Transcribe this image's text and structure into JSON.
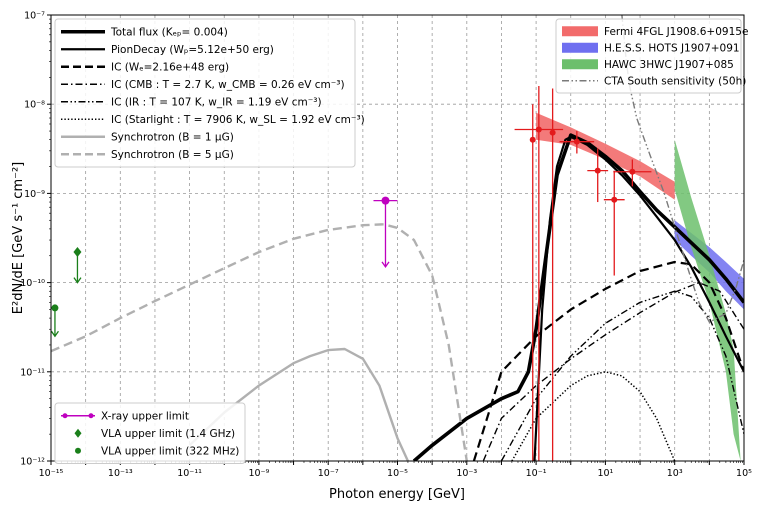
{
  "chart_data": {
    "type": "line",
    "xlabel": "Photon energy [GeV]",
    "ylabel": "E²dN/dE [GeV s⁻¹ cm⁻²]",
    "x_scale": "log",
    "y_scale": "log",
    "xlim": [
      1e-15,
      100000.0
    ],
    "ylim": [
      1e-12,
      1e-07
    ],
    "grid": true,
    "x_ticks": [
      {
        "exp": -15,
        "label": "10⁻¹⁵"
      },
      {
        "exp": -13,
        "label": "10⁻¹³"
      },
      {
        "exp": -11,
        "label": "10⁻¹¹"
      },
      {
        "exp": -9,
        "label": "10⁻⁹"
      },
      {
        "exp": -7,
        "label": "10⁻⁷"
      },
      {
        "exp": -5,
        "label": "10⁻⁵"
      },
      {
        "exp": -3,
        "label": "10⁻³"
      },
      {
        "exp": -1,
        "label": "10⁻¹"
      },
      {
        "exp": 1,
        "label": "10¹"
      },
      {
        "exp": 3,
        "label": "10³"
      },
      {
        "exp": 5,
        "label": "10⁵"
      }
    ],
    "y_ticks": [
      {
        "exp": -12,
        "label": "10⁻¹²"
      },
      {
        "exp": -11,
        "label": "10⁻¹¹"
      },
      {
        "exp": -10,
        "label": "10⁻¹⁰"
      },
      {
        "exp": -9,
        "label": "10⁻⁹"
      },
      {
        "exp": -8,
        "label": "10⁻⁸"
      },
      {
        "exp": -7,
        "label": "10⁻⁷"
      }
    ],
    "legend_left_top": [
      {
        "text": "Total flux (Kₑₚ= 0.004)",
        "style": "solid-thick",
        "color": "#000000"
      },
      {
        "text": "PionDecay (Wₚ=5.12e+50 erg)",
        "style": "solid",
        "color": "#000000"
      },
      {
        "text": "IC (Wₑ=2.16e+48 erg)",
        "style": "dashed",
        "color": "#000000"
      },
      {
        "text": "IC (CMB : T = 2.7 K, w_CMB = 0.26 eV cm⁻³)",
        "style": "dashdot",
        "color": "#000000"
      },
      {
        "text": "IC (IR : T = 107 K, w_IR = 1.19 eV cm⁻³)",
        "style": "dashdotdot",
        "color": "#000000"
      },
      {
        "text": "IC (Starlight : T = 7906 K, w_SL = 1.92 eV cm⁻³)",
        "style": "dotted",
        "color": "#000000"
      },
      {
        "text": "Synchrotron (B = 1 μG)",
        "style": "solid",
        "color": "#b0b0b0"
      },
      {
        "text": "Synchrotron (B = 5 μG)",
        "style": "dashed",
        "color": "#b0b0b0"
      }
    ],
    "legend_right_top": [
      {
        "text": "Fermi 4FGL J1908.6+0915e",
        "style": "patch",
        "color": "#f26b6b"
      },
      {
        "text": "H.E.S.S. HOTS J1907+091",
        "style": "patch",
        "color": "#6f6ff0"
      },
      {
        "text": "HAWC 3HWC J1907+085",
        "style": "patch",
        "color": "#6cbf6c"
      },
      {
        "text": "CTA South sensitivity (50h)",
        "style": "dashdotdot",
        "color": "#7a7a7a"
      }
    ],
    "legend_left_bottom": [
      {
        "text": "X-ray upper limit",
        "style": "marker-line",
        "color": "#bf00bf"
      },
      {
        "text": "VLA upper limit (1.4 GHz)",
        "style": "diamond",
        "color": "#1a7f1a"
      },
      {
        "text": "VLA upper limit (322 MHz)",
        "style": "circle",
        "color": "#1a7f1a"
      }
    ],
    "series": [
      {
        "name": "Total flux (Kₑₚ= 0.004)",
        "color": "#000000",
        "dash": "",
        "width": 3.6,
        "x": [
          3e-05,
          0.0001,
          0.001,
          0.01,
          0.03,
          0.06,
          0.1,
          0.2,
          0.4,
          1,
          3,
          10,
          30,
          100,
          300,
          1000,
          3000,
          10000,
          30000,
          100000
        ],
        "y": [
          1e-12,
          1.5e-12,
          3e-12,
          5e-12,
          6e-12,
          1e-11,
          3e-11,
          2.2e-10,
          1.6e-09,
          4.5e-09,
          3.7e-09,
          2.6e-09,
          1.8e-09,
          1.05e-09,
          6.5e-10,
          4.2e-10,
          2.8e-10,
          1.8e-10,
          1.1e-10,
          6e-11
        ]
      },
      {
        "name": "PionDecay (Wₚ=5.12e+50 erg)",
        "color": "#000000",
        "dash": "",
        "width": 2.2,
        "x": [
          0.09,
          0.15,
          0.25,
          0.4,
          0.7,
          1,
          3,
          10,
          30,
          100,
          300,
          1000,
          3000,
          10000,
          30000,
          100000
        ],
        "y": [
          1e-12,
          5e-11,
          5e-10,
          2e-09,
          4e-09,
          4.3e-09,
          3.5e-09,
          2.4e-09,
          1.6e-09,
          9.5e-10,
          5.5e-10,
          3e-10,
          1.5e-10,
          6e-11,
          2.5e-11,
          1e-11
        ]
      },
      {
        "name": "IC (Wₑ=2.16e+48 erg)",
        "color": "#000000",
        "dash": "9 5",
        "width": 2.2,
        "x": [
          0.0016,
          0.01,
          0.1,
          1,
          10,
          100,
          1000,
          3000,
          10000,
          30000,
          100000
        ],
        "y": [
          1e-12,
          1e-11,
          2.5e-11,
          5e-11,
          8.5e-11,
          1.35e-10,
          1.7e-10,
          1.6e-10,
          1e-10,
          4e-11,
          1e-11
        ]
      },
      {
        "name": "IC (CMB : T = 2.7 K, w_CMB = 0.26 eV cm⁻³)",
        "color": "#000000",
        "dash": "7 3 1.5 3",
        "width": 1.4,
        "x": [
          0.003,
          0.01,
          0.1,
          1,
          10,
          100,
          1000,
          5000,
          20000,
          100000
        ],
        "y": [
          1e-12,
          3e-12,
          7e-12,
          1.4e-11,
          2.6e-11,
          4.6e-11,
          7.8e-11,
          1e-10,
          8e-11,
          3e-11
        ]
      },
      {
        "name": "IC (IR : T = 107 K, w_IR = 1.19 eV cm⁻³)",
        "color": "#000000",
        "dash": "7 2.5 1.5 2.5 1.5 2.5",
        "width": 1.4,
        "x": [
          0.01,
          0.1,
          1,
          10,
          100,
          1000,
          3000,
          10000,
          30000,
          100000
        ],
        "y": [
          1e-12,
          5e-12,
          1.5e-11,
          3.5e-11,
          6e-11,
          8e-11,
          7e-11,
          4e-11,
          1.5e-11,
          2e-12
        ]
      },
      {
        "name": "IC (Starlight : T = 7906 K, w_SL = 1.92 eV cm⁻³)",
        "color": "#000000",
        "dash": "1.4 2",
        "width": 1.5,
        "x": [
          0.02,
          0.1,
          1,
          3,
          10,
          30,
          100,
          300,
          1000
        ],
        "y": [
          1e-12,
          3e-12,
          7e-12,
          9e-12,
          1e-11,
          9e-12,
          6e-12,
          3e-12,
          1e-12
        ]
      },
      {
        "name": "Synchrotron (B = 1 μG)",
        "color": "#b0b0b0",
        "dash": "",
        "width": 2.4,
        "x": [
          1e-11,
          1e-10,
          1e-09,
          1e-08,
          3e-08,
          1e-07,
          3e-07,
          1e-06,
          3e-06,
          1e-05,
          2e-05
        ],
        "y": [
          1.5e-12,
          3.5e-12,
          7e-12,
          1.25e-11,
          1.5e-11,
          1.75e-11,
          1.8e-11,
          1.4e-11,
          7e-12,
          1.8e-12,
          1e-12
        ]
      },
      {
        "name": "Synchrotron (B = 5 μG)",
        "color": "#b0b0b0",
        "dash": "9 5",
        "width": 2.4,
        "x": [
          1e-15,
          1e-14,
          1e-13,
          1e-12,
          1e-11,
          1e-10,
          1e-09,
          1e-08,
          1e-07,
          1e-06,
          4e-06,
          1e-05,
          3e-05,
          0.0001,
          0.0003,
          0.001
        ],
        "y": [
          1.7e-11,
          2.5e-11,
          4e-11,
          6.2e-11,
          9.5e-11,
          1.45e-10,
          2.2e-10,
          3.1e-10,
          3.9e-10,
          4.4e-10,
          4.5e-10,
          4.1e-10,
          3e-10,
          1.2e-10,
          2e-11,
          1e-12
        ]
      },
      {
        "name": "CTA South sensitivity (50h)",
        "color": "#7a7a7a",
        "dash": "7 2.5 1.5 2.5 1.5 2.5",
        "width": 1.4,
        "x": [
          30,
          40,
          50,
          80,
          100,
          200,
          500,
          1000,
          3000,
          5000,
          10000,
          30000,
          60000,
          100000
        ],
        "y": [
          1e-07,
          3e-08,
          1.6e-08,
          7e-09,
          5.5e-09,
          2.6e-09,
          1e-09,
          4.2e-10,
          1.1e-10,
          6e-11,
          3.6e-11,
          4.5e-11,
          9e-11,
          1.8e-10
        ]
      }
    ],
    "bands": [
      {
        "name": "Fermi 4FGL J1908.6+0915e",
        "color": "#f26b6b",
        "opacity": 0.9,
        "x": [
          0.1,
          1,
          10,
          100,
          1000
        ],
        "upper": [
          8e-09,
          5.5e-09,
          3.6e-09,
          2.3e-09,
          1.35e-09
        ],
        "lower": [
          4e-09,
          3.5e-09,
          2.4e-09,
          1.55e-09,
          8.5e-10
        ]
      },
      {
        "name": "H.E.S.S. HOTS J1907+091",
        "color": "#6f6ff0",
        "opacity": 0.85,
        "x": [
          1000,
          3000,
          10000,
          30000,
          100000
        ],
        "upper": [
          5e-10,
          3.6e-10,
          2.5e-10,
          1.7e-10,
          1.1e-10
        ],
        "lower": [
          3e-10,
          2e-10,
          1.3e-10,
          8e-11,
          5e-11
        ]
      },
      {
        "name": "HAWC 3HWC J1907+085",
        "color": "#6cbf6c",
        "opacity": 0.85,
        "x": [
          1000,
          3000,
          10000,
          30000,
          50000,
          80000
        ],
        "upper": [
          4e-09,
          9e-10,
          2e-10,
          4.5e-11,
          1.8e-11,
          1e-12
        ],
        "lower": [
          1.1e-09,
          2.5e-10,
          6e-11,
          1e-11,
          2e-12,
          1e-12
        ]
      }
    ],
    "fermi_points": {
      "color": "#e31a1c",
      "points": [
        {
          "x": 0.08,
          "y": 4e-09,
          "yerr_low": 1e-12,
          "yerr_high": 1e-08,
          "xerr": 0
        },
        {
          "x": 0.12,
          "y": 5.2e-09,
          "yerr_low": 1e-12,
          "yerr_high": 1.6e-08,
          "xerr": 0.7
        },
        {
          "x": 0.3,
          "y": 4.8e-09,
          "yerr_low": 1e-12,
          "yerr_high": 1.5e-08,
          "xerr": 0
        },
        {
          "x": 1.5,
          "y": 3.8e-09,
          "yerr_low": 2.8e-09,
          "yerr_high": 5e-09,
          "xerr": 0.5
        },
        {
          "x": 6,
          "y": 1.8e-09,
          "yerr_low": 8e-10,
          "yerr_high": 3.2e-09,
          "xerr": 0.3
        },
        {
          "x": 18,
          "y": 8.5e-10,
          "yerr_low": 1.2e-10,
          "yerr_high": 1.8e-09,
          "xerr": 0.3
        },
        {
          "x": 60,
          "y": 1.75e-09,
          "yerr_low": 1.2e-09,
          "yerr_high": 2.4e-09,
          "xerr": 0.55
        }
      ]
    },
    "upper_limits": [
      {
        "name": "X-ray upper limit",
        "marker": "circle-hbar",
        "color": "#bf00bf",
        "x": 4.5e-06,
        "y": 8.3e-10,
        "arrow_to": 1.5e-10
      },
      {
        "name": "VLA upper limit (1.4 GHz)",
        "marker": "diamond",
        "color": "#1a7f1a",
        "x": 5.8e-15,
        "y": 2.2e-10,
        "arrow_to": 1e-10
      },
      {
        "name": "VLA upper limit (322 MHz)",
        "marker": "circle",
        "color": "#1a7f1a",
        "x": 1.3e-15,
        "y": 5.2e-11,
        "arrow_to": 2.5e-11
      }
    ]
  }
}
